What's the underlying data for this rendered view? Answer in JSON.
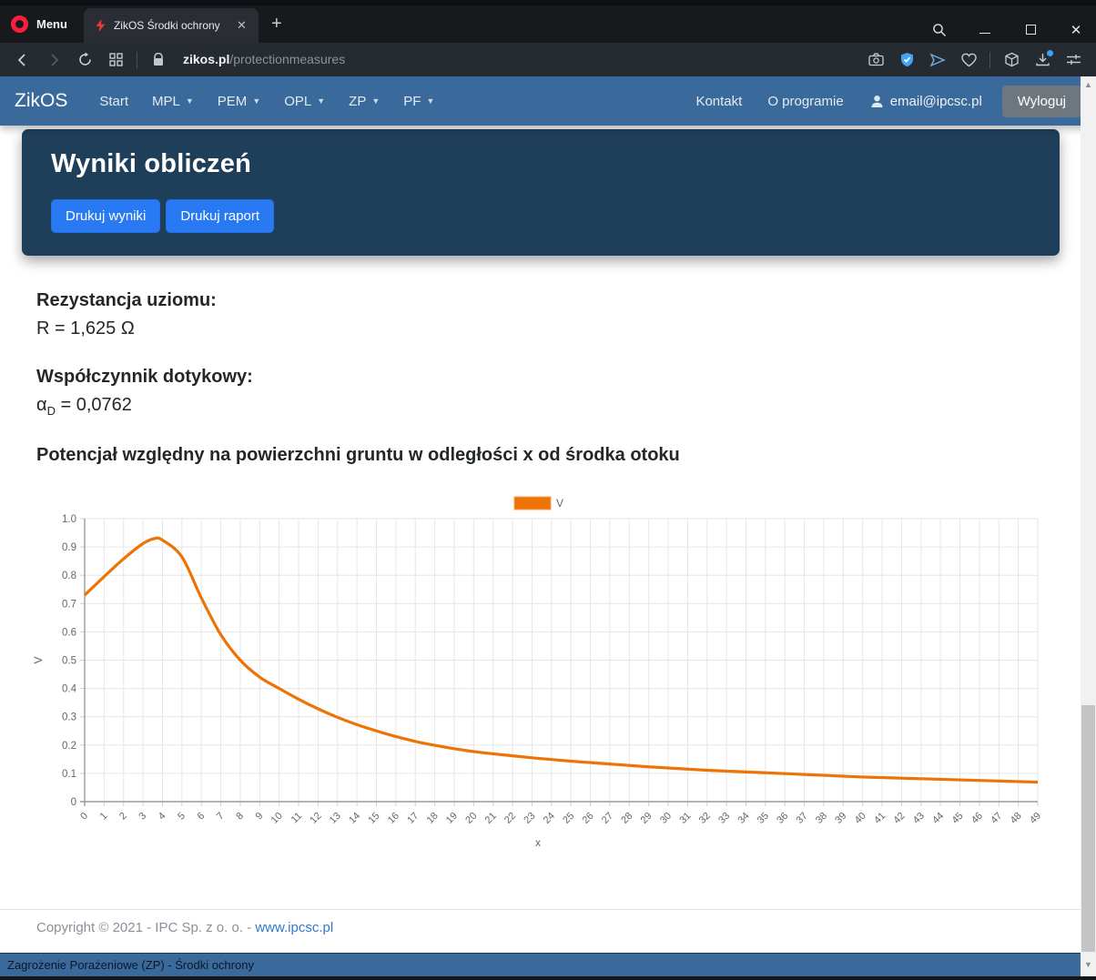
{
  "browser": {
    "menu_label": "Menu",
    "tab_title": "ZikOS Środki ochrony",
    "tab_close": "✕",
    "new_tab": "+",
    "url_host": "zikos.pl",
    "url_path": "/protectionmeasures"
  },
  "navbar": {
    "brand": "ZikOS",
    "items": [
      {
        "label": "Start",
        "caret": false
      },
      {
        "label": "MPL",
        "caret": true
      },
      {
        "label": "PEM",
        "caret": true
      },
      {
        "label": "OPL",
        "caret": true
      },
      {
        "label": "ZP",
        "caret": true
      },
      {
        "label": "PF",
        "caret": true
      }
    ],
    "right_items": [
      {
        "label": "Kontakt"
      },
      {
        "label": "O programie"
      }
    ],
    "user_email": "email@ipcsc.pl",
    "logout_label": "Wyloguj"
  },
  "header": {
    "title": "Wyniki obliczeń",
    "buttons": [
      "Drukuj wyniki",
      "Drukuj raport"
    ]
  },
  "results": {
    "resistance_label": "Rezystancja uziomu:",
    "resistance_value": "R = 1,625 Ω",
    "touch_label": "Współczynnik dotykowy:",
    "alpha_symbol": "α",
    "alpha_sub": "D",
    "alpha_value": " = 0,0762"
  },
  "chart_heading": "Potencjał względny na powierzchni gruntu w odległości x od środka otoku",
  "chart_data": {
    "type": "line",
    "title": "Potencjał względny na powierzchni gruntu w odległości x od środka otoku",
    "xlabel": "x",
    "ylabel": "V",
    "xlim": [
      0,
      49
    ],
    "ylim": [
      0,
      1.0
    ],
    "x_tick_step": 1,
    "y_tick_step": 0.1,
    "grid": true,
    "legend_position": "top-center",
    "series": [
      {
        "name": "V",
        "color": "#ed7306",
        "points": [
          [
            0,
            0.73
          ],
          [
            1,
            0.795
          ],
          [
            2,
            0.858
          ],
          [
            3,
            0.912
          ],
          [
            3.6,
            0.93
          ],
          [
            4,
            0.924
          ],
          [
            5,
            0.865
          ],
          [
            6,
            0.72
          ],
          [
            7,
            0.59
          ],
          [
            8,
            0.5
          ],
          [
            9,
            0.44
          ],
          [
            10,
            0.4
          ],
          [
            11,
            0.362
          ],
          [
            12,
            0.328
          ],
          [
            13,
            0.298
          ],
          [
            14,
            0.272
          ],
          [
            15,
            0.25
          ],
          [
            16,
            0.23
          ],
          [
            17,
            0.213
          ],
          [
            18,
            0.199
          ],
          [
            19,
            0.187
          ],
          [
            20,
            0.177
          ],
          [
            21,
            0.169
          ],
          [
            22,
            0.162
          ],
          [
            23,
            0.155
          ],
          [
            24,
            0.149
          ],
          [
            25,
            0.143
          ],
          [
            26,
            0.138
          ],
          [
            27,
            0.133
          ],
          [
            28,
            0.128
          ],
          [
            29,
            0.123
          ],
          [
            30,
            0.119
          ],
          [
            31,
            0.115
          ],
          [
            32,
            0.111
          ],
          [
            33,
            0.108
          ],
          [
            34,
            0.105
          ],
          [
            35,
            0.102
          ],
          [
            36,
            0.099
          ],
          [
            37,
            0.096
          ],
          [
            38,
            0.093
          ],
          [
            39,
            0.09
          ],
          [
            40,
            0.087
          ],
          [
            41,
            0.085
          ],
          [
            42,
            0.083
          ],
          [
            43,
            0.081
          ],
          [
            44,
            0.079
          ],
          [
            45,
            0.077
          ],
          [
            46,
            0.075
          ],
          [
            47,
            0.073
          ],
          [
            48,
            0.071
          ],
          [
            49,
            0.069
          ]
        ]
      }
    ]
  },
  "footer": {
    "copyright": "Copyright © 2021 - IPC Sp. z o. o. - ",
    "link": "www.ipcsc.pl"
  },
  "statusbar": {
    "text": "Zagrożenie Porażeniowe (ZP) - Środki ochrony"
  }
}
